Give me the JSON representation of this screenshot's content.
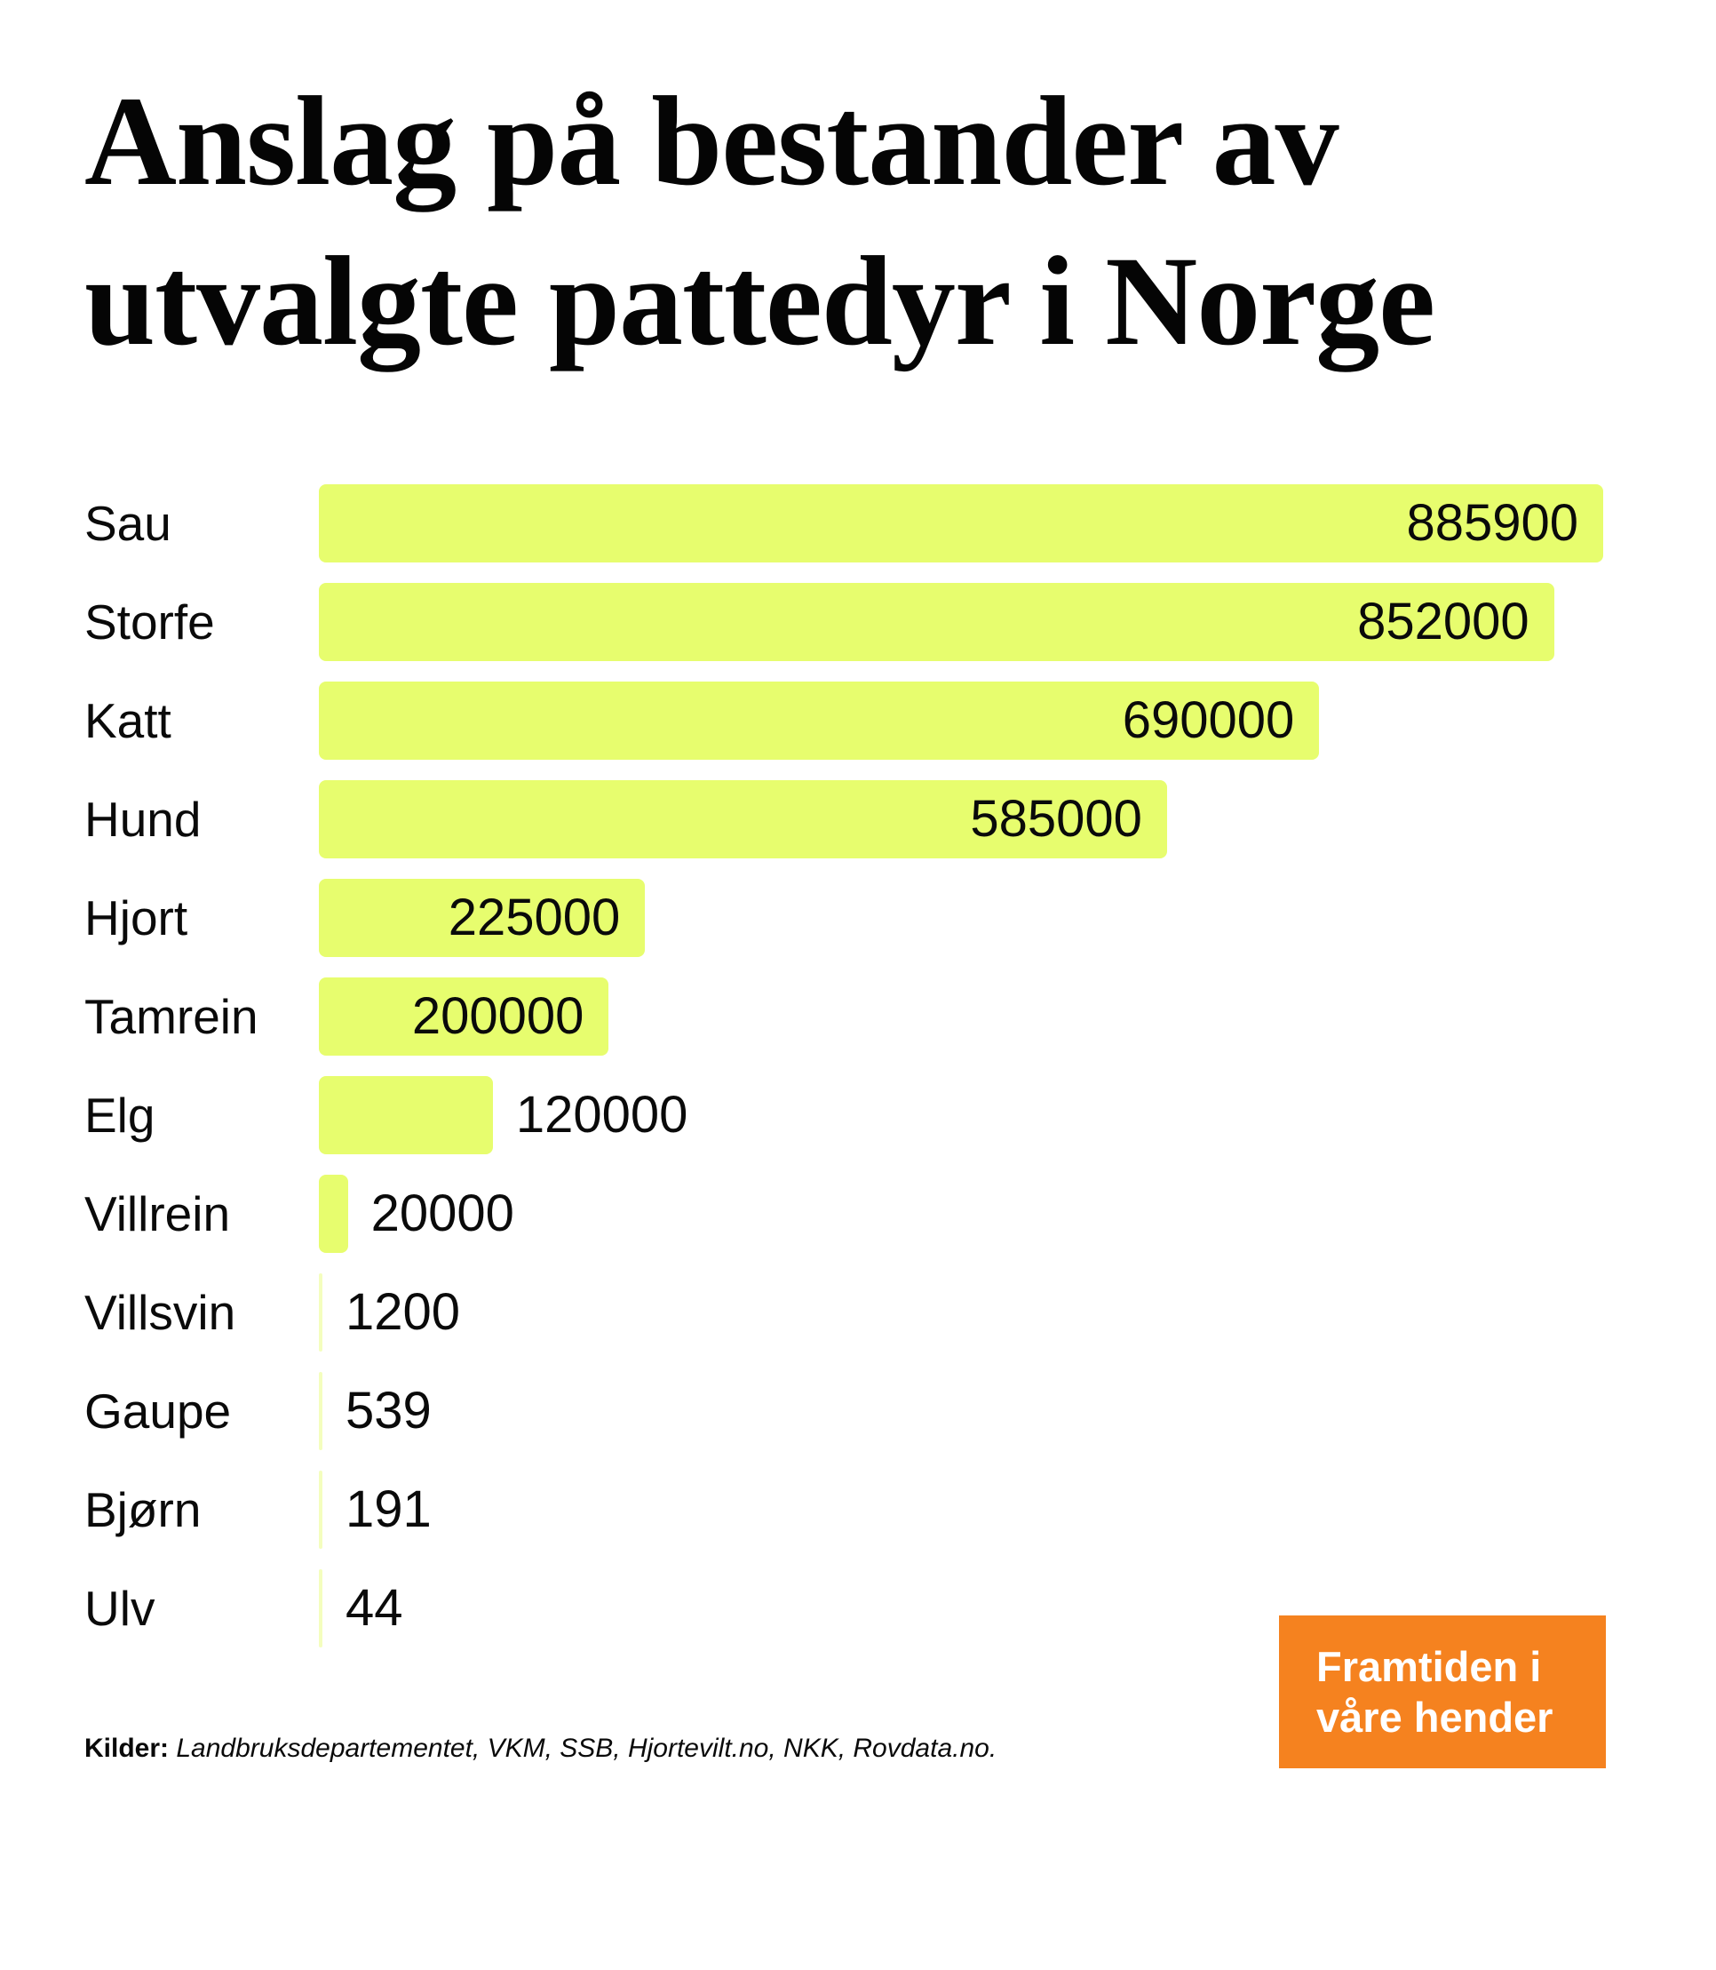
{
  "title_lines": [
    "Anslag på bestander av",
    "utvalgte pattedyr i Norge"
  ],
  "chart_data": {
    "type": "bar",
    "orientation": "horizontal",
    "title": "Anslag på bestander av utvalgte pattedyr i Norge",
    "categories": [
      "Sau",
      "Storfe",
      "Katt",
      "Hund",
      "Hjort",
      "Tamrein",
      "Elg",
      "Villrein",
      "Villsvin",
      "Gaupe",
      "Bjørn",
      "Ulv"
    ],
    "values": [
      885900,
      852000,
      690000,
      585000,
      225000,
      200000,
      120000,
      20000,
      1200,
      539,
      191,
      44
    ],
    "xlim": [
      0,
      885900
    ],
    "value_labels": "at-bar-end",
    "grid": false,
    "legend": "none",
    "bar_color": "#e7fd6e",
    "text_color": "#0a0a0a"
  },
  "source": {
    "label": "Kilder:",
    "text": "Landbruksdepartementet, VKM, SSB, Hjortevilt.no, NKK, Rovdata.no."
  },
  "badge": {
    "line1": "Framtiden i",
    "line2": "våre hender",
    "bg_color": "#f5821f",
    "text_color": "#ffffff"
  }
}
